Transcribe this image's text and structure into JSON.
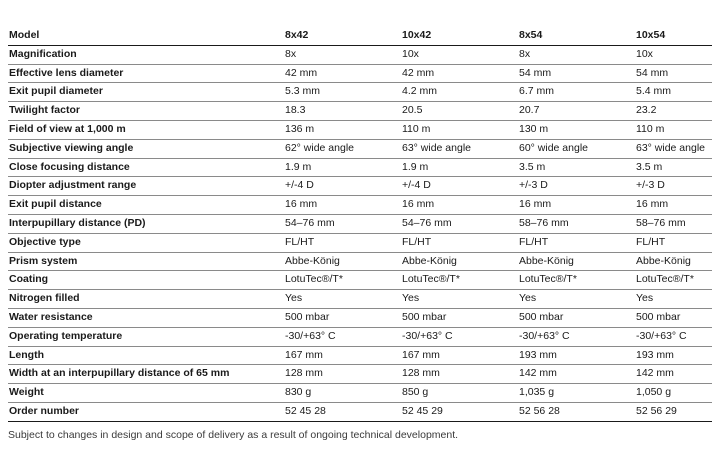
{
  "table": {
    "headers": [
      "Model",
      "8x42",
      "10x42",
      "8x54",
      "10x54"
    ],
    "rows": [
      [
        "Magnification",
        "8x",
        "10x",
        "8x",
        "10x"
      ],
      [
        "Effective lens diameter",
        "42 mm",
        "42 mm",
        "54 mm",
        "54 mm"
      ],
      [
        "Exit pupil diameter",
        "5.3 mm",
        "4.2 mm",
        "6.7 mm",
        "5.4 mm"
      ],
      [
        "Twilight factor",
        "18.3",
        "20.5",
        "20.7",
        "23.2"
      ],
      [
        "Field of view at 1,000 m",
        "136 m",
        "110 m",
        "130 m",
        "110 m"
      ],
      [
        "Subjective viewing angle",
        "62° wide angle",
        "63° wide angle",
        "60° wide angle",
        "63° wide angle"
      ],
      [
        "Close focusing distance",
        "1.9 m",
        "1.9 m",
        "3.5 m",
        "3.5 m"
      ],
      [
        "Diopter adjustment range",
        "+/-4 D",
        "+/-4 D",
        "+/-3 D",
        "+/-3 D"
      ],
      [
        "Exit pupil distance",
        "16 mm",
        "16 mm",
        "16 mm",
        "16 mm"
      ],
      [
        "Interpupillary distance (PD)",
        "54–76 mm",
        "54–76 mm",
        "58–76 mm",
        "58–76 mm"
      ],
      [
        "Objective type",
        "FL/HT",
        "FL/HT",
        "FL/HT",
        "FL/HT"
      ],
      [
        "Prism system",
        "Abbe-König",
        "Abbe-König",
        "Abbe-König",
        "Abbe-König"
      ],
      [
        "Coating",
        "LotuTec®/T*",
        "LotuTec®/T*",
        "LotuTec®/T*",
        "LotuTec®/T*"
      ],
      [
        "Nitrogen filled",
        "Yes",
        "Yes",
        "Yes",
        "Yes"
      ],
      [
        "Water resistance",
        "500 mbar",
        "500 mbar",
        "500 mbar",
        "500 mbar"
      ],
      [
        "Operating temperature",
        "-30/+63° C",
        "-30/+63° C",
        "-30/+63° C",
        "-30/+63° C"
      ],
      [
        "Length",
        "167 mm",
        "167 mm",
        "193 mm",
        "193 mm"
      ],
      [
        "Width at an interpupillary distance of 65 mm",
        "128 mm",
        "128 mm",
        "142 mm",
        "142 mm"
      ],
      [
        "Weight",
        "830 g",
        "850 g",
        "1,035 g",
        "1,050 g"
      ],
      [
        "Order number",
        "52 45 28",
        "52 45 29",
        "52 56 28",
        "52 56 29"
      ]
    ]
  },
  "footnote": "Subject to changes in design and scope of delivery as a result of ongoing technical development."
}
